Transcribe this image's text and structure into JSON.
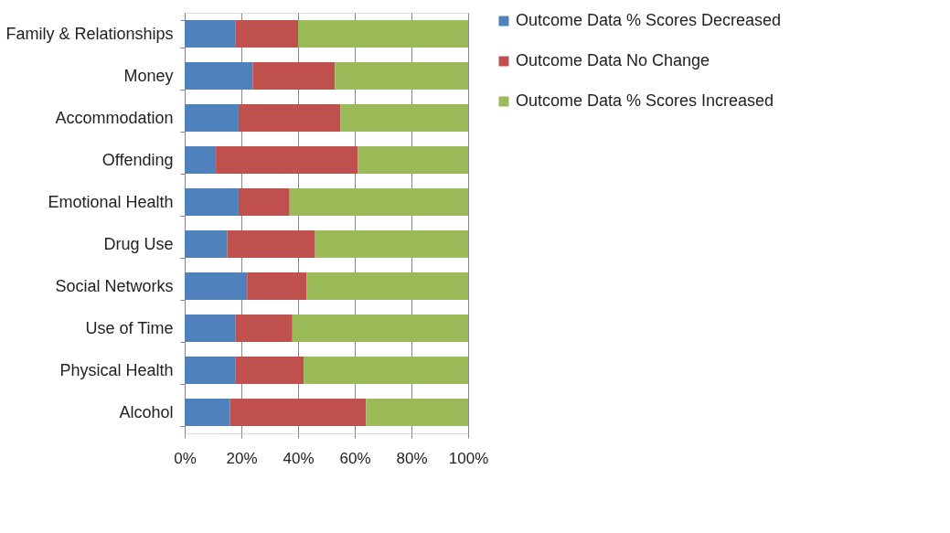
{
  "chart_data": {
    "type": "bar",
    "orientation": "horizontal",
    "stacked": true,
    "categories": [
      "Family & Relationships",
      "Money",
      "Accommodation",
      "Offending",
      "Emotional Health",
      "Drug Use",
      "Social Networks",
      "Use of Time",
      "Physical Health",
      "Alcohol"
    ],
    "series": [
      {
        "name": "Outcome Data % Scores Decreased",
        "color": "#4f81bd",
        "values": [
          18,
          24,
          19,
          11,
          19,
          15,
          22,
          18,
          18,
          16
        ]
      },
      {
        "name": "Outcome Data No Change",
        "color": "#c0504d",
        "values": [
          22,
          29,
          36,
          50,
          18,
          31,
          21,
          20,
          24,
          48
        ]
      },
      {
        "name": "Outcome Data % Scores Increased",
        "color": "#9bbb59",
        "values": [
          60,
          47,
          45,
          39,
          63,
          54,
          57,
          62,
          58,
          36
        ]
      }
    ],
    "xlim": [
      0,
      100
    ],
    "xticks": [
      {
        "value": 0,
        "label": "0%"
      },
      {
        "value": 20,
        "label": "20%"
      },
      {
        "value": 40,
        "label": "40%"
      },
      {
        "value": 60,
        "label": "60%"
      },
      {
        "value": 80,
        "label": "80%"
      },
      {
        "value": 100,
        "label": "100%"
      }
    ],
    "grid": "x",
    "legend": "right"
  }
}
